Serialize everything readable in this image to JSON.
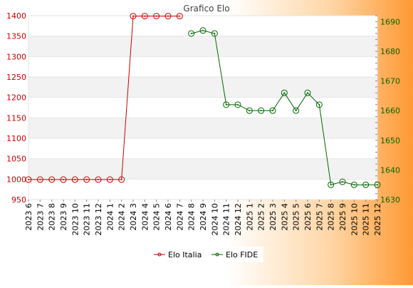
{
  "chart_data": {
    "type": "line",
    "title": "Grafico Elo",
    "categories": [
      "2023 6",
      "2023 7",
      "2023 8",
      "2023 9",
      "2023 10",
      "2023 11",
      "2023 12",
      "2024 1",
      "2024 2",
      "2024 3",
      "2024 4",
      "2024 5",
      "2024 6",
      "2024 7",
      "2024 8",
      "2024 9",
      "2024 10",
      "2024 11",
      "2024 12",
      "2025 1",
      "2025 2",
      "2025 3",
      "2025 4",
      "2025 5",
      "2025 6",
      "2025 7",
      "2025 8",
      "2025 9",
      "2025 10",
      "2025 11",
      "2025 12"
    ],
    "y_left": {
      "ylim": [
        950,
        1400
      ],
      "ticks": [
        "950",
        "1000",
        "1050",
        "1100",
        "1150",
        "1200",
        "1250",
        "1300",
        "1350",
        "1400"
      ],
      "color": "#cc0000"
    },
    "y_right": {
      "ylim": [
        1630,
        1692
      ],
      "ticks": [
        "1630",
        "1640",
        "1650",
        "1660",
        "1670",
        "1680",
        "1690"
      ],
      "color": "#006600"
    },
    "series": [
      {
        "name": "Elo Italia",
        "axis": "left",
        "color": "#cc0000",
        "values": [
          999,
          999,
          999,
          999,
          999,
          999,
          999,
          999,
          999,
          1399,
          1399,
          1399,
          1399,
          1399,
          null,
          null,
          null,
          null,
          null,
          null,
          null,
          null,
          null,
          null,
          null,
          null,
          null,
          null,
          null,
          null,
          null
        ]
      },
      {
        "name": "Elo FIDE",
        "axis": "right",
        "color": "#006600",
        "values": [
          null,
          null,
          null,
          null,
          null,
          null,
          null,
          null,
          null,
          null,
          null,
          null,
          null,
          null,
          1686,
          1687,
          1686,
          1662,
          1662,
          1660,
          1660,
          1660,
          1666,
          1660,
          1666,
          1662,
          1635,
          1636,
          1635,
          1635,
          1635
        ]
      }
    ],
    "grid": true,
    "legend": "bottom-center"
  }
}
